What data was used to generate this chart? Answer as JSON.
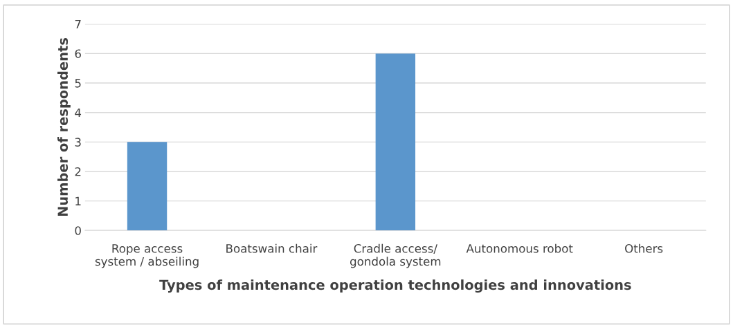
{
  "chart_data": {
    "type": "bar",
    "xlabel": "Types of maintenance operation technologies and innovations",
    "ylabel": "Number of respondents",
    "categories": [
      "Rope access\nsystem / abseiling",
      "Boatswain chair",
      "Cradle access/\ngondola system",
      "Autonomous robot",
      "Others"
    ],
    "values": [
      3,
      0,
      6,
      0,
      0
    ],
    "color": "#5b96cc",
    "ylim": [
      0,
      7
    ],
    "yticks": [
      0,
      1,
      2,
      3,
      4,
      5,
      6,
      7
    ],
    "grid": "y",
    "legend": false
  }
}
